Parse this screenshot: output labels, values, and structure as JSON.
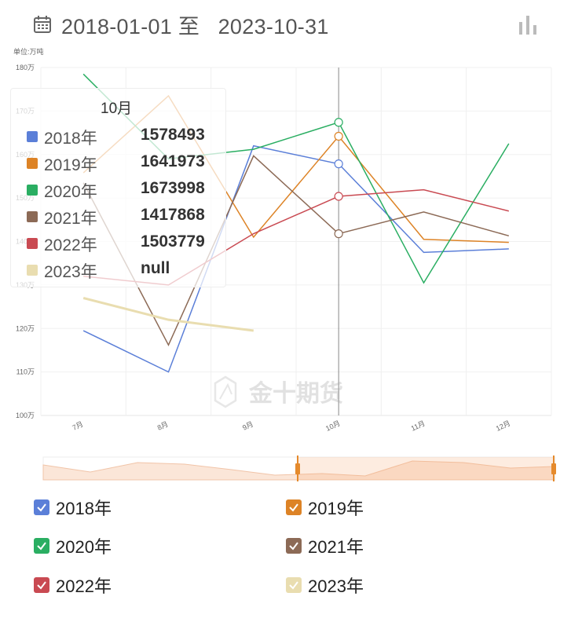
{
  "header": {
    "date_range": "2018-01-01 至   2023-10-31",
    "calendar_icon": "calendar-icon",
    "chart_type_icon": "bar-chart-icon"
  },
  "watermark": {
    "text": "金十期货",
    "icon": "jin10-logo-icon"
  },
  "tooltip": {
    "title": "10月",
    "rows": [
      {
        "name": "2018年",
        "value": "1578493",
        "color": "#5b7fd8"
      },
      {
        "name": "2019年",
        "value": "1641973",
        "color": "#dd8326"
      },
      {
        "name": "2020年",
        "value": "1673998",
        "color": "#2aae62"
      },
      {
        "name": "2021年",
        "value": "1417868",
        "color": "#8c6a56"
      },
      {
        "name": "2022年",
        "value": "1503779",
        "color": "#c94a52"
      },
      {
        "name": "2023年",
        "value": "null",
        "color": "#e9ddb0"
      }
    ]
  },
  "legend": [
    {
      "label": "2018年",
      "color": "#5b7fd8",
      "checked": true
    },
    {
      "label": "2019年",
      "color": "#dd8326",
      "checked": true
    },
    {
      "label": "2020年",
      "color": "#2aae62",
      "checked": true
    },
    {
      "label": "2021年",
      "color": "#8c6a56",
      "checked": true
    },
    {
      "label": "2022年",
      "color": "#c94a52",
      "checked": true
    },
    {
      "label": "2023年",
      "color": "#e9ddb0",
      "checked": true
    }
  ],
  "chart_data": {
    "type": "line",
    "unit_label": "单位:万吨",
    "ylim": [
      1000000,
      1800000
    ],
    "y_ticks": [
      1000000,
      1100000,
      1200000,
      1300000,
      1400000,
      1500000,
      1600000,
      1700000,
      1800000
    ],
    "y_tick_labels": [
      "100万",
      "110万",
      "120万",
      "130万",
      "140万",
      "150万",
      "160万",
      "170万",
      "180万"
    ],
    "categories": [
      "7月",
      "8月",
      "9月",
      "10月",
      "11月",
      "12月"
    ],
    "highlight_index": 3,
    "grid": true,
    "series": [
      {
        "name": "2018年",
        "color": "#5b7fd8",
        "values": [
          1195000,
          1100000,
          1620000,
          1578493,
          1375000,
          1383000
        ]
      },
      {
        "name": "2019年",
        "color": "#dd8326",
        "values": [
          1558000,
          1735000,
          1410000,
          1641973,
          1405000,
          1398000
        ]
      },
      {
        "name": "2020年",
        "color": "#2aae62",
        "values": [
          1785000,
          1590000,
          1612000,
          1673998,
          1305000,
          1625000
        ]
      },
      {
        "name": "2021年",
        "color": "#8c6a56",
        "values": [
          1535000,
          1162000,
          1597000,
          1417868,
          1468000,
          1413000
        ]
      },
      {
        "name": "2022年",
        "color": "#c94a52",
        "values": [
          1320000,
          1300000,
          1418000,
          1503779,
          1519000,
          1470000
        ]
      },
      {
        "name": "2023年",
        "color": "#e9ddb0",
        "values": [
          1270000,
          1220000,
          1195000,
          null,
          null,
          null
        ]
      }
    ]
  }
}
